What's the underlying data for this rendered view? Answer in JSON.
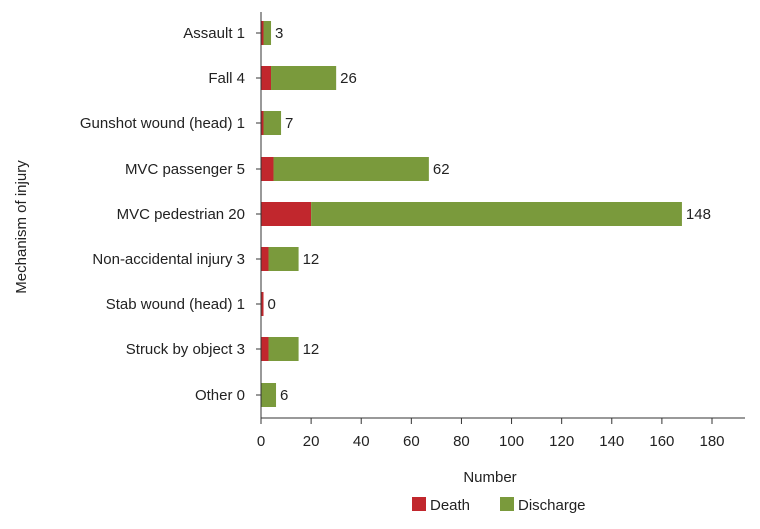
{
  "chart_data": {
    "type": "bar",
    "orientation": "horizontal",
    "stacked": true,
    "title": "",
    "xlabel": "Number",
    "ylabel": "Mechanism of injury",
    "xlim": [
      0,
      190
    ],
    "xticks": [
      0,
      20,
      40,
      60,
      80,
      100,
      120,
      140,
      160,
      180
    ],
    "grid": false,
    "legend_position": "bottom",
    "categories": [
      "Assault 1",
      "Fall 4",
      "Gunshot wound (head) 1",
      "MVC passenger 5",
      "MVC pedestrian 20",
      "Non-accidental injury 3",
      "Stab wound (head) 1",
      "Struck by object 3",
      "Other 0"
    ],
    "series": [
      {
        "name": "Death",
        "color": "#c1272d",
        "values": [
          1,
          4,
          1,
          5,
          20,
          3,
          1,
          3,
          0
        ]
      },
      {
        "name": "Discharge",
        "color": "#7a9a3c",
        "values": [
          3,
          26,
          7,
          62,
          148,
          12,
          0,
          12,
          6
        ]
      }
    ],
    "data_labels": [
      "3",
      "26",
      "7",
      "62",
      "148",
      "12",
      "0",
      "12",
      "6"
    ]
  }
}
